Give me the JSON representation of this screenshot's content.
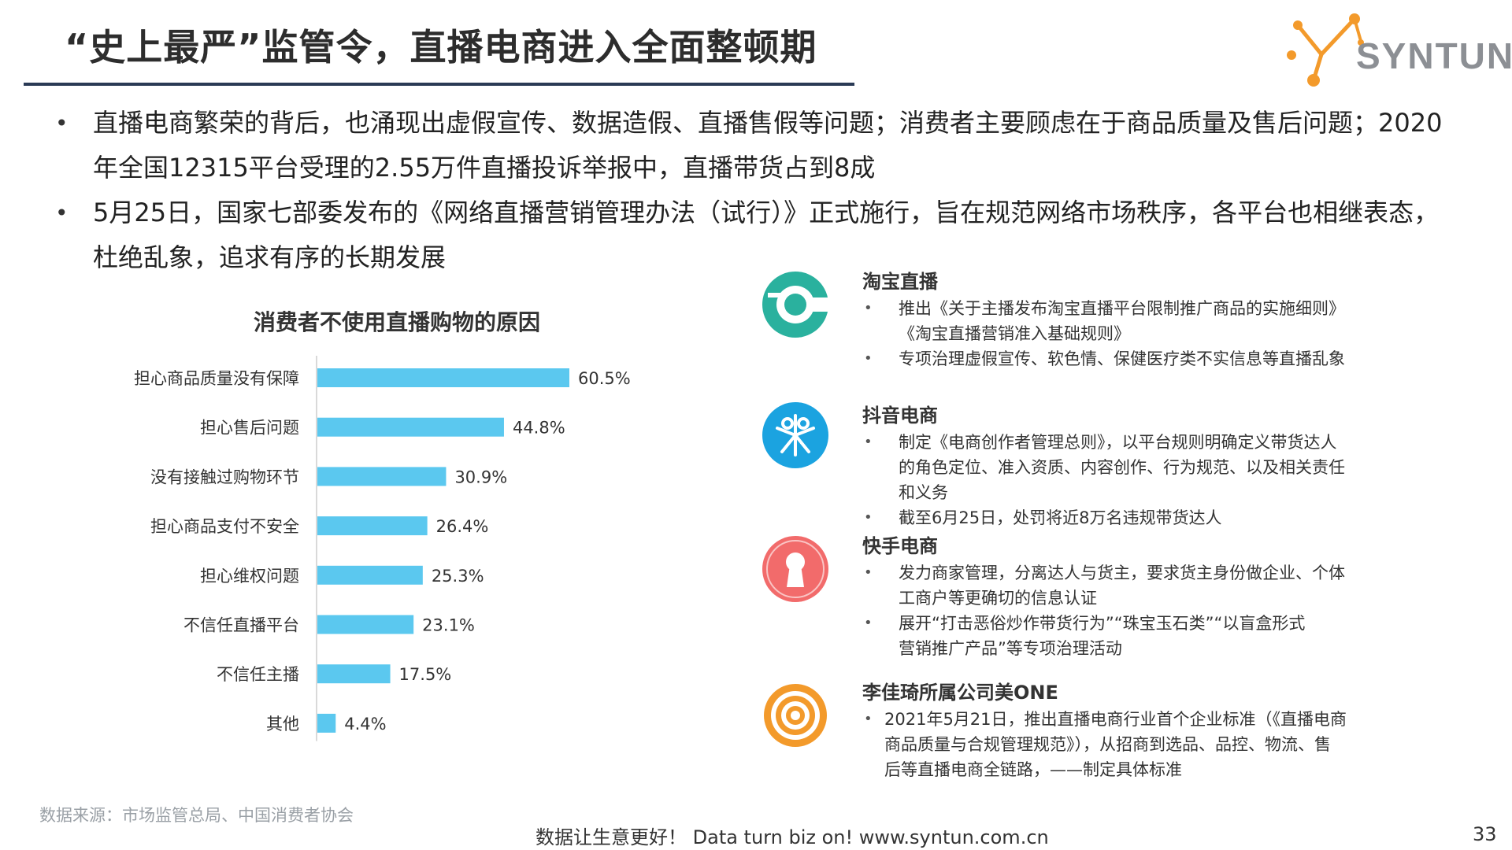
{
  "title": "“史上最严”监管令，直播电商进入全面整顿期",
  "logo": {
    "text": "SYNTUN"
  },
  "bullets": [
    "直播电商繁荣的背后，也涌现出虚假宣传、数据造假、直播售假等问题；消费者主要顾虑在于商品质量及售后问题；2020年全国12315平台受理的2.55万件直播投诉举报中，直播带货占到8成",
    "5月25日，国家七部委发布的《网络直播营销管理办法（试行）》正式施行，旨在规范网络市场秩序，各平台也相继表态，杜绝乱象，追求有序的长期发展"
  ],
  "chart_data": {
    "type": "bar",
    "orientation": "horizontal",
    "title": "消费者不使用直播购物的原因",
    "categories": [
      "担心商品质量没有保障",
      "担心售后问题",
      "没有接触过购物环节",
      "担心商品支付不安全",
      "担心维权问题",
      "不信任直播平台",
      "不信任主播",
      "其他"
    ],
    "values": [
      60.5,
      44.8,
      30.9,
      26.4,
      25.3,
      23.1,
      17.5,
      4.4
    ],
    "value_labels": [
      "60.5%",
      "44.8%",
      "30.9%",
      "26.4%",
      "25.3%",
      "23.1%",
      "17.5%",
      "4.4%"
    ],
    "unit": "%",
    "bar_color": "#5bc8ef",
    "grid": false
  },
  "platforms": [
    {
      "name": "淘宝直播",
      "icon": "taobao-live-icon",
      "color": "#2ab19e",
      "lines": [
        "推出《关于主播发布淘宝直播平台限制推广商品的实施细则》",
        "《淘宝直播营销准入基础规则》"
      ],
      "line2": "专项治理虚假宣传、软色情、保健医疗类不实信息等直播乱象"
    },
    {
      "name": "抖音电商",
      "icon": "douyin-ecommerce-icon",
      "color": "#1ba3e0",
      "lines": [
        "制定《电商创作者管理总则》，以平台规则明确定义带货达人",
        "的角色定位、准入资质、内容创作、行为规范、以及相关责任",
        "和义务"
      ],
      "line2": "截至6月25日，处罚将近8万名违规带货达人"
    },
    {
      "name": "快手电商",
      "icon": "kuaishou-ecommerce-icon",
      "color": "#f26b6b",
      "lines": [
        "发力商家管理，分离达人与货主，要求货主身份做企业、个体",
        "工商户等更确切的信息认证"
      ],
      "line2a": "展开“打击恶俗炒作带货行为”“珠宝玉石类”“以盲盒形式",
      "line2b": "营销推广产品”等专项治理活动"
    },
    {
      "name": "李佳琦所属公司美ONE",
      "icon": "meione-target-icon",
      "color": "#f39a2b",
      "lines": [
        "2021年5月21日，推出直播电商行业首个企业标准（《直播电商",
        "商品质量与合规管理规范》），从招商到选品、品控、物流、售",
        "后等直播电商全链路，——制定具体标准"
      ]
    }
  ],
  "source": "数据来源：市场监管总局、中国消费者协会",
  "footer": "数据让生意更好！ Data turn biz on!  www.syntun.com.cn",
  "page_number": "33"
}
